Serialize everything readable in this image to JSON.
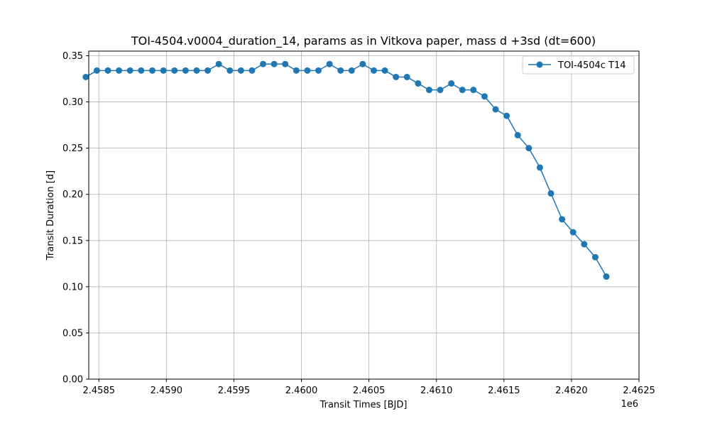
{
  "chart_data": {
    "type": "line",
    "title": "TOI-4504.v0004_duration_14, params as in Vitkova paper, mass d +3sd (dt=600)",
    "xlabel": "Transit Times [BJD]",
    "ylabel": "Transit Duration [d]",
    "x_offset_label": "1e6",
    "xlim": [
      2458425,
      2462500
    ],
    "ylim": [
      0,
      0.355
    ],
    "x_ticks": [
      2458500,
      2459000,
      2459500,
      2460000,
      2460500,
      2461000,
      2461500,
      2462000,
      2462500
    ],
    "x_tick_labels": [
      "2.4585",
      "2.4590",
      "2.4595",
      "2.4600",
      "2.4605",
      "2.4610",
      "2.4615",
      "2.4620",
      "2.4625"
    ],
    "y_ticks": [
      0,
      0.05,
      0.1,
      0.15,
      0.2,
      0.25,
      0.3,
      0.35
    ],
    "y_tick_labels": [
      "0.00",
      "0.05",
      "0.10",
      "0.15",
      "0.20",
      "0.25",
      "0.30",
      "0.35"
    ],
    "grid": true,
    "legend_position": "top-right",
    "colors": {
      "series": "#1f77b4",
      "grid": "#b0b0b0"
    },
    "series": [
      {
        "name": "TOI-4504c T14",
        "x": [
          2458403,
          2458485,
          2458567,
          2458649,
          2458731,
          2458813,
          2458896,
          2458978,
          2459060,
          2459142,
          2459224,
          2459306,
          2459388,
          2459470,
          2459552,
          2459634,
          2459716,
          2459798,
          2459880,
          2459962,
          2460044,
          2460126,
          2460208,
          2460290,
          2460372,
          2460454,
          2460536,
          2460618,
          2460700,
          2460782,
          2460864,
          2460946,
          2461028,
          2461110,
          2461192,
          2461274,
          2461356,
          2461438,
          2461520,
          2461602,
          2461684,
          2461766,
          2461848,
          2461930,
          2462012,
          2462094,
          2462176,
          2462258
        ],
        "y": [
          0.327,
          0.334,
          0.334,
          0.334,
          0.334,
          0.334,
          0.334,
          0.334,
          0.334,
          0.334,
          0.334,
          0.334,
          0.341,
          0.334,
          0.334,
          0.334,
          0.341,
          0.341,
          0.341,
          0.334,
          0.334,
          0.334,
          0.341,
          0.334,
          0.334,
          0.341,
          0.334,
          0.334,
          0.327,
          0.327,
          0.32,
          0.313,
          0.313,
          0.32,
          0.313,
          0.313,
          0.306,
          0.292,
          0.285,
          0.264,
          0.25,
          0.229,
          0.201,
          0.173,
          0.159,
          0.146,
          0.132,
          0.111
        ]
      }
    ]
  }
}
